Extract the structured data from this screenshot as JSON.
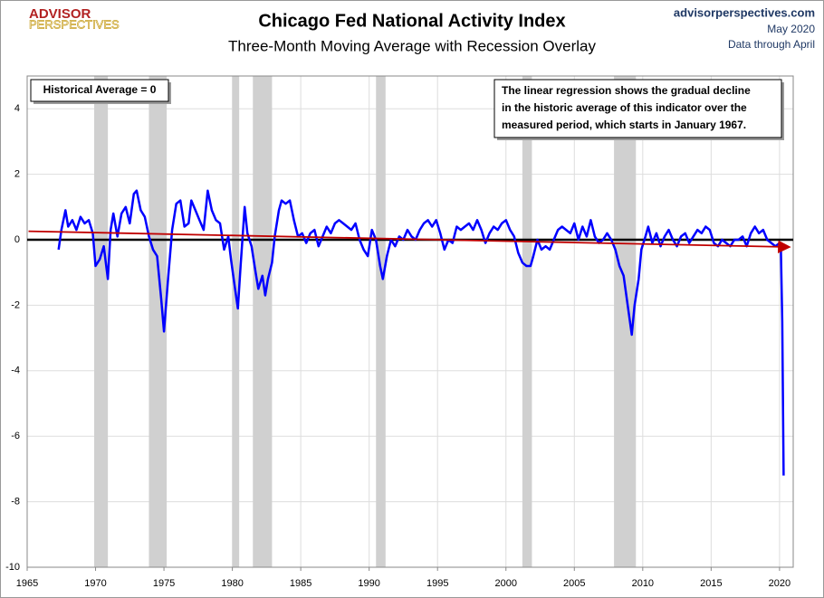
{
  "logo": [
    "ADVISOR",
    "PERSPECTIVES"
  ],
  "site": "advisorperspectives.com",
  "date": "May 2020",
  "data_through": "Data through April",
  "chart_data": {
    "type": "line",
    "title": "Chicago Fed National Activity Index",
    "subtitle": "Three-Month Moving Average with Recession Overlay",
    "annotations": [
      "Historical Average = 0",
      [
        "The linear regression shows the gradual decline",
        "in the historic average of this indicator over the",
        "measured period, which starts in January 1967."
      ]
    ],
    "xlim": [
      1965,
      2021
    ],
    "xticks": [
      1965,
      1970,
      1975,
      1980,
      1985,
      1990,
      1995,
      2000,
      2005,
      2010,
      2015,
      2020
    ],
    "ylim": [
      -10,
      5
    ],
    "yticks": [
      -10,
      -8,
      -6,
      -4,
      -2,
      0,
      2,
      4
    ],
    "negative_tick_color": "#c00000",
    "grid": true,
    "zero_line": {
      "value": 0,
      "color": "#000000"
    },
    "recession_color": "#d0d0d0",
    "recessions": [
      [
        1969.9,
        1970.9
      ],
      [
        1973.9,
        1975.2
      ],
      [
        1980.0,
        1980.5
      ],
      [
        1981.5,
        1982.9
      ],
      [
        1990.5,
        1991.2
      ],
      [
        2001.2,
        2001.9
      ],
      [
        2007.9,
        2009.5
      ]
    ],
    "trend": {
      "color": "#c00000",
      "x": [
        1965.1,
        2020.6
      ],
      "values": [
        0.26,
        -0.22
      ]
    },
    "series": [
      {
        "color": "#0000ff",
        "x": [
          1967.3,
          1967.5,
          1967.8,
          1968.0,
          1968.3,
          1968.6,
          1968.9,
          1969.2,
          1969.5,
          1969.8,
          1970.0,
          1970.3,
          1970.6,
          1970.9,
          1971.1,
          1971.3,
          1971.6,
          1971.9,
          1972.2,
          1972.5,
          1972.8,
          1973.0,
          1973.3,
          1973.6,
          1973.9,
          1974.2,
          1974.5,
          1974.8,
          1975.0,
          1975.3,
          1975.6,
          1975.9,
          1976.2,
          1976.5,
          1976.8,
          1977.0,
          1977.3,
          1977.6,
          1977.9,
          1978.2,
          1978.5,
          1978.8,
          1979.1,
          1979.4,
          1979.7,
          1979.9,
          1980.2,
          1980.4,
          1980.6,
          1980.9,
          1981.1,
          1981.4,
          1981.7,
          1981.9,
          1982.2,
          1982.4,
          1982.6,
          1982.9,
          1983.1,
          1983.4,
          1983.6,
          1983.9,
          1984.2,
          1984.5,
          1984.8,
          1985.1,
          1985.4,
          1985.7,
          1986.0,
          1986.3,
          1986.6,
          1986.9,
          1987.2,
          1987.5,
          1987.8,
          1988.1,
          1988.4,
          1988.7,
          1989.0,
          1989.3,
          1989.6,
          1989.9,
          1990.2,
          1990.5,
          1990.8,
          1991.0,
          1991.3,
          1991.6,
          1991.9,
          1992.2,
          1992.5,
          1992.8,
          1993.1,
          1993.4,
          1993.7,
          1994.0,
          1994.3,
          1994.6,
          1994.9,
          1995.2,
          1995.5,
          1995.8,
          1996.1,
          1996.4,
          1996.7,
          1997.0,
          1997.3,
          1997.6,
          1997.9,
          1998.2,
          1998.5,
          1998.8,
          1999.1,
          1999.4,
          1999.7,
          2000.0,
          2000.3,
          2000.6,
          2000.9,
          2001.2,
          2001.5,
          2001.8,
          2002.0,
          2002.3,
          2002.6,
          2002.9,
          2003.2,
          2003.5,
          2003.8,
          2004.1,
          2004.4,
          2004.7,
          2005.0,
          2005.3,
          2005.6,
          2005.9,
          2006.2,
          2006.5,
          2006.8,
          2007.1,
          2007.4,
          2007.7,
          2008.0,
          2008.3,
          2008.6,
          2008.9,
          2009.2,
          2009.4,
          2009.7,
          2009.9,
          2010.2,
          2010.4,
          2010.7,
          2011.0,
          2011.3,
          2011.6,
          2011.9,
          2012.2,
          2012.5,
          2012.8,
          2013.1,
          2013.4,
          2013.7,
          2014.0,
          2014.3,
          2014.6,
          2014.9,
          2015.2,
          2015.5,
          2015.8,
          2016.1,
          2016.4,
          2016.7,
          2017.0,
          2017.3,
          2017.6,
          2017.9,
          2018.2,
          2018.5,
          2018.8,
          2019.1,
          2019.4,
          2019.7,
          2020.0,
          2020.1,
          2020.2,
          2020.3
        ],
        "values": [
          -0.3,
          0.3,
          0.9,
          0.4,
          0.6,
          0.3,
          0.7,
          0.5,
          0.6,
          0.2,
          -0.8,
          -0.6,
          -0.2,
          -1.2,
          0.3,
          0.8,
          0.1,
          0.8,
          1.0,
          0.5,
          1.4,
          1.5,
          0.9,
          0.7,
          0.1,
          -0.3,
          -0.5,
          -1.8,
          -2.8,
          -1.2,
          0.3,
          1.1,
          1.2,
          0.4,
          0.5,
          1.2,
          0.9,
          0.6,
          0.3,
          1.5,
          0.9,
          0.6,
          0.5,
          -0.3,
          0.1,
          -0.6,
          -1.5,
          -2.1,
          -0.8,
          1.0,
          0.2,
          -0.2,
          -1.0,
          -1.5,
          -1.1,
          -1.7,
          -1.2,
          -0.7,
          0.1,
          0.9,
          1.2,
          1.1,
          1.2,
          0.6,
          0.1,
          0.2,
          -0.1,
          0.2,
          0.3,
          -0.2,
          0.1,
          0.4,
          0.2,
          0.5,
          0.6,
          0.5,
          0.4,
          0.3,
          0.5,
          0.0,
          -0.3,
          -0.5,
          0.3,
          0.0,
          -0.8,
          -1.2,
          -0.5,
          0.0,
          -0.2,
          0.1,
          0.0,
          0.3,
          0.1,
          0.0,
          0.3,
          0.5,
          0.6,
          0.4,
          0.6,
          0.2,
          -0.3,
          0.0,
          -0.1,
          0.4,
          0.3,
          0.4,
          0.5,
          0.3,
          0.6,
          0.3,
          -0.1,
          0.2,
          0.4,
          0.3,
          0.5,
          0.6,
          0.3,
          0.1,
          -0.4,
          -0.7,
          -0.8,
          -0.8,
          -0.5,
          0.0,
          -0.3,
          -0.2,
          -0.3,
          0.0,
          0.3,
          0.4,
          0.3,
          0.2,
          0.5,
          0.0,
          0.4,
          0.1,
          0.6,
          0.1,
          -0.1,
          0.0,
          0.2,
          0.0,
          -0.3,
          -0.8,
          -1.1,
          -2.0,
          -2.9,
          -2.0,
          -1.2,
          -0.3,
          0.1,
          0.4,
          -0.1,
          0.2,
          -0.2,
          0.1,
          0.3,
          0.0,
          -0.2,
          0.1,
          0.2,
          -0.1,
          0.1,
          0.3,
          0.2,
          0.4,
          0.3,
          -0.1,
          -0.2,
          0.0,
          -0.1,
          -0.2,
          0.0,
          0.0,
          0.1,
          -0.2,
          0.2,
          0.4,
          0.2,
          0.3,
          0.0,
          -0.1,
          -0.2,
          -0.1,
          -0.3,
          -2.5,
          -7.2
        ]
      }
    ]
  }
}
